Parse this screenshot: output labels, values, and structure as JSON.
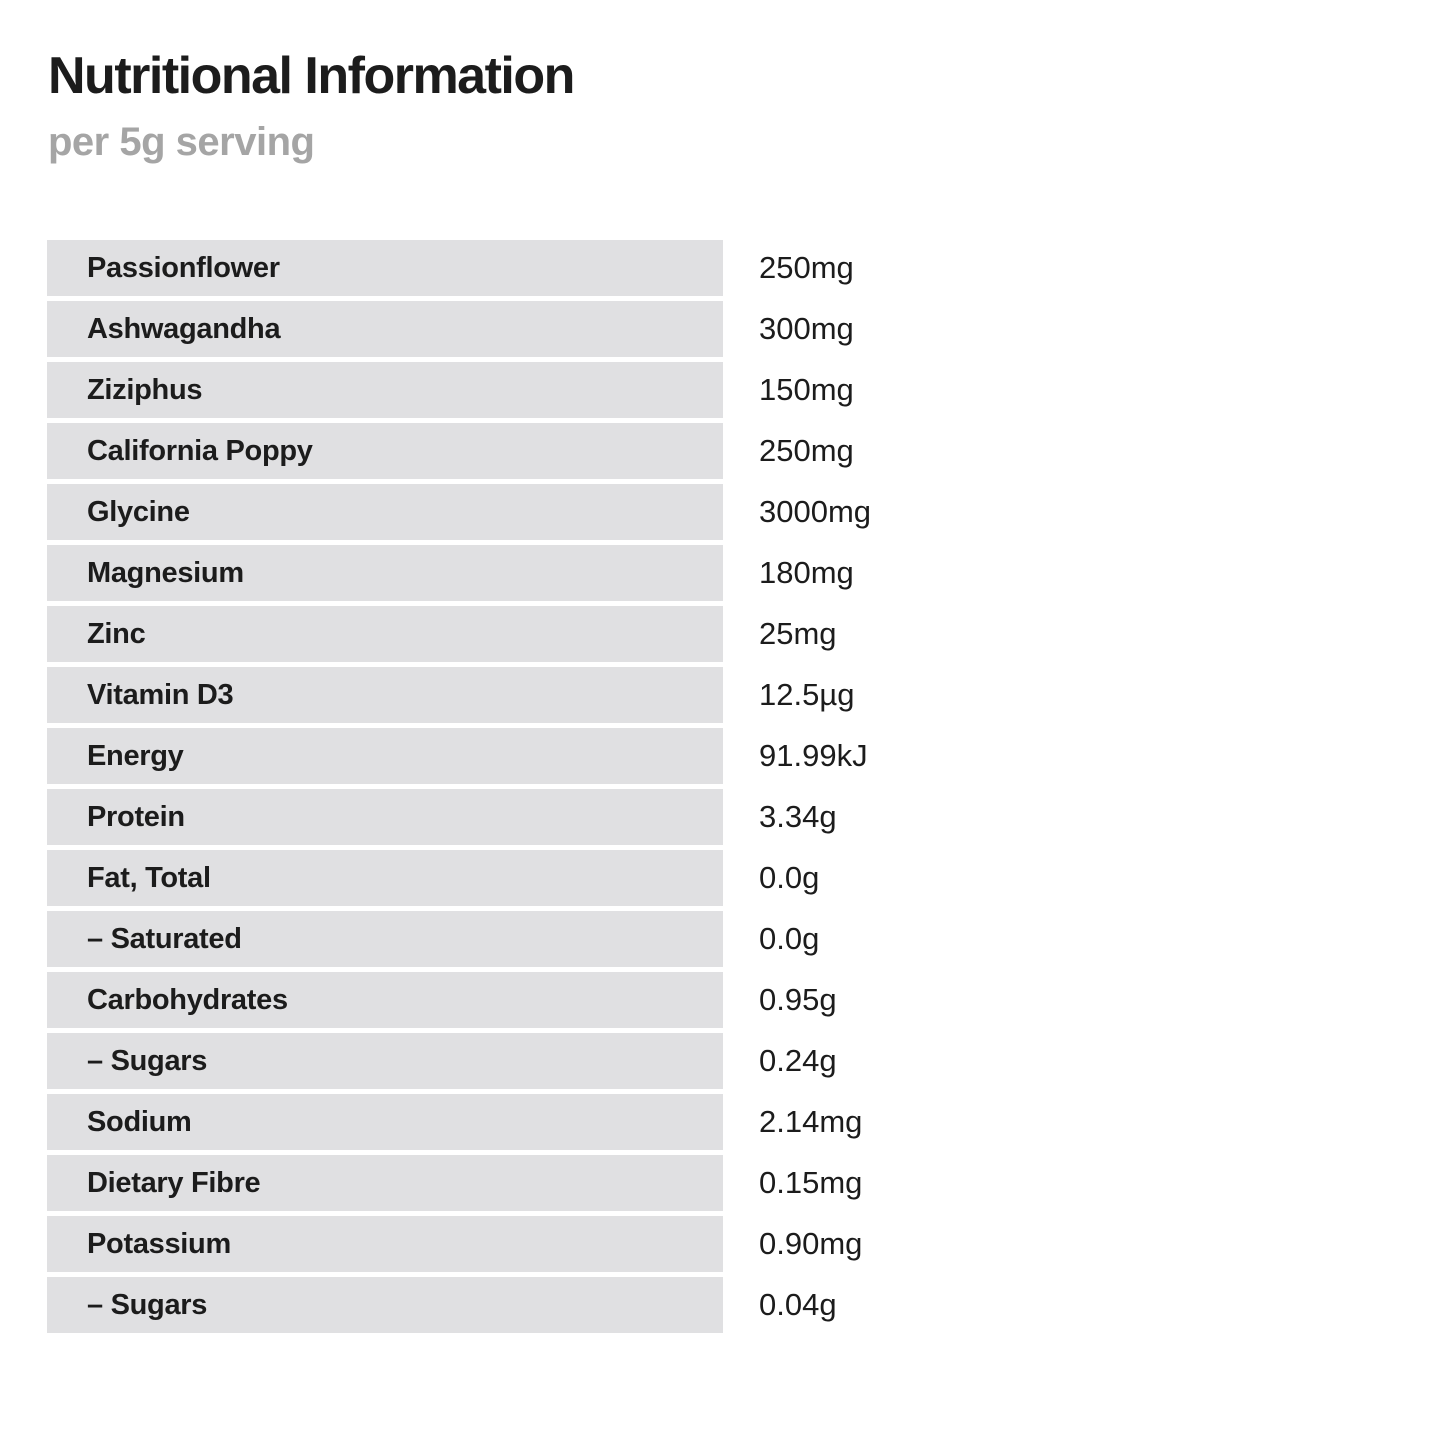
{
  "page": {
    "title": "Nutritional Information",
    "subtitle": "per 5g serving"
  },
  "table": {
    "rows": [
      {
        "label": "Passionflower",
        "value": "250mg"
      },
      {
        "label": "Ashwagandha",
        "value": "300mg"
      },
      {
        "label": "Ziziphus",
        "value": "150mg"
      },
      {
        "label": "California Poppy",
        "value": "250mg"
      },
      {
        "label": "Glycine",
        "value": "3000mg"
      },
      {
        "label": "Magnesium",
        "value": "180mg"
      },
      {
        "label": "Zinc",
        "value": "25mg"
      },
      {
        "label": "Vitamin D3",
        "value": "12.5µg"
      },
      {
        "label": "Energy",
        "value": "91.99kJ"
      },
      {
        "label": "Protein",
        "value": "3.34g"
      },
      {
        "label": "Fat, Total",
        "value": "0.0g"
      },
      {
        "label": "– Saturated",
        "value": "0.0g"
      },
      {
        "label": "Carbohydrates",
        "value": "0.95g"
      },
      {
        "label": "– Sugars",
        "value": "0.24g"
      },
      {
        "label": "Sodium",
        "value": "2.14mg"
      },
      {
        "label": "Dietary Fibre",
        "value": "0.15mg"
      },
      {
        "label": "Potassium",
        "value": "0.90mg"
      },
      {
        "label": "– Sugars",
        "value": "0.04g"
      }
    ]
  },
  "colors": {
    "background": "#ffffff",
    "row_background": "#e0e0e2",
    "title_text": "#1c1c1c",
    "subtitle_text": "#a5a5a5",
    "label_text": "#1c1c1c",
    "value_text": "#1c1c1c"
  }
}
